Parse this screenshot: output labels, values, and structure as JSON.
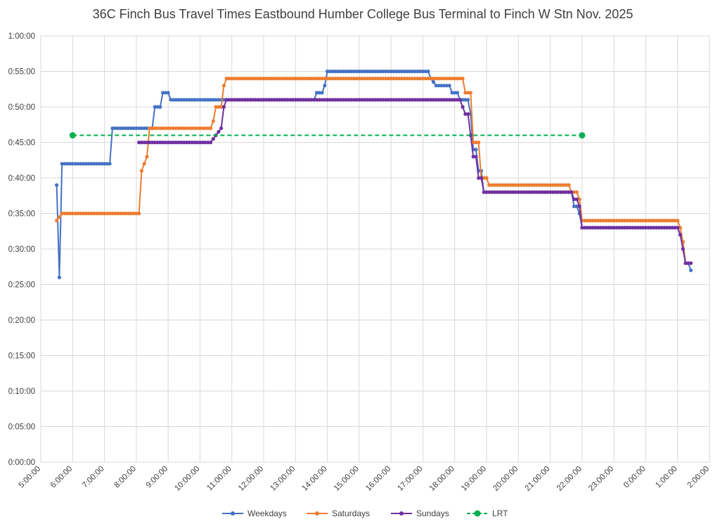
{
  "chart_data": {
    "type": "line",
    "title": "36C Finch Bus Travel Times Eastbound Humber College Bus Terminal to Finch W Stn Nov. 2025",
    "xlabel": "",
    "ylabel": "",
    "xlim": [
      "5:00:00",
      "2:00:00 (+1 day)"
    ],
    "ylim": [
      "0:00:00",
      "1:00:00"
    ],
    "grid": true,
    "legend": "bottom",
    "x_ticks": [
      "5:00:00",
      "6:00:00",
      "7:00:00",
      "8:00:00",
      "9:00:00",
      "10:00:00",
      "11:00:00",
      "12:00:00",
      "13:00:00",
      "14:00:00",
      "15:00:00",
      "16:00:00",
      "17:00:00",
      "18:00:00",
      "19:00:00",
      "20:00:00",
      "21:00:00",
      "22:00:00",
      "23:00:00",
      "0:00:00",
      "1:00:00",
      "2:00:00"
    ],
    "y_ticks": [
      "0:00:00",
      "0:05:00",
      "0:10:00",
      "0:15:00",
      "0:20:00",
      "0:25:00",
      "0:30:00",
      "0:35:00",
      "0:40:00",
      "0:45:00",
      "0:50:00",
      "0:55:00",
      "1:00:00"
    ],
    "series": [
      {
        "name": "Weekdays",
        "color": "#4472C4",
        "style": "solid",
        "points": [
          [
            "5:30",
            "0:39:00"
          ],
          [
            "5:35",
            "0:26:00"
          ],
          [
            "5:40",
            "0:42:00"
          ],
          [
            "7:10",
            "0:42:00"
          ],
          [
            "7:15",
            "0:47:00"
          ],
          [
            "8:30",
            "0:47:00"
          ],
          [
            "8:35",
            "0:50:00"
          ],
          [
            "8:45",
            "0:50:00"
          ],
          [
            "8:50",
            "0:52:00"
          ],
          [
            "9:00",
            "0:52:00"
          ],
          [
            "9:05",
            "0:51:00"
          ],
          [
            "13:35",
            "0:51:00"
          ],
          [
            "13:40",
            "0:52:00"
          ],
          [
            "13:50",
            "0:52:00"
          ],
          [
            "13:55",
            "0:53:00"
          ],
          [
            "14:00",
            "0:55:00"
          ],
          [
            "17:10",
            "0:55:00"
          ],
          [
            "17:15",
            "0:54:00"
          ],
          [
            "17:25",
            "0:53:00"
          ],
          [
            "17:50",
            "0:53:00"
          ],
          [
            "17:55",
            "0:52:00"
          ],
          [
            "18:05",
            "0:52:00"
          ],
          [
            "18:10",
            "0:51:00"
          ],
          [
            "18:25",
            "0:51:00"
          ],
          [
            "18:30",
            "0:49:00"
          ],
          [
            "18:35",
            "0:44:00"
          ],
          [
            "18:40",
            "0:44:00"
          ],
          [
            "18:45",
            "0:41:00"
          ],
          [
            "18:50",
            "0:41:00"
          ],
          [
            "18:55",
            "0:38:00"
          ],
          [
            "21:40",
            "0:38:00"
          ],
          [
            "21:45",
            "0:36:00"
          ],
          [
            "21:50",
            "0:36:00"
          ],
          [
            "21:55",
            "0:35:00"
          ],
          [
            "22:00",
            "0:33:00"
          ],
          [
            "25:00",
            "0:33:00"
          ],
          [
            "25:05",
            "0:32:00"
          ],
          [
            "25:10",
            "0:31:00"
          ],
          [
            "25:15",
            "0:28:00"
          ],
          [
            "25:20",
            "0:28:00"
          ],
          [
            "25:25",
            "0:27:00"
          ]
        ]
      },
      {
        "name": "Saturdays",
        "color": "#ED7D31",
        "style": "solid",
        "points": [
          [
            "5:30",
            "0:34:00"
          ],
          [
            "5:40",
            "0:35:00"
          ],
          [
            "8:05",
            "0:35:00"
          ],
          [
            "8:10",
            "0:41:00"
          ],
          [
            "8:20",
            "0:43:00"
          ],
          [
            "8:25",
            "0:47:00"
          ],
          [
            "10:20",
            "0:47:00"
          ],
          [
            "10:25",
            "0:48:00"
          ],
          [
            "10:30",
            "0:50:00"
          ],
          [
            "10:40",
            "0:50:00"
          ],
          [
            "10:45",
            "0:53:00"
          ],
          [
            "10:50",
            "0:54:00"
          ],
          [
            "18:15",
            "0:54:00"
          ],
          [
            "18:20",
            "0:52:00"
          ],
          [
            "18:30",
            "0:52:00"
          ],
          [
            "18:35",
            "0:45:00"
          ],
          [
            "18:45",
            "0:45:00"
          ],
          [
            "18:50",
            "0:40:00"
          ],
          [
            "19:00",
            "0:40:00"
          ],
          [
            "19:05",
            "0:39:00"
          ],
          [
            "21:35",
            "0:39:00"
          ],
          [
            "21:40",
            "0:38:00"
          ],
          [
            "21:50",
            "0:38:00"
          ],
          [
            "21:55",
            "0:37:00"
          ],
          [
            "22:00",
            "0:34:00"
          ],
          [
            "25:00",
            "0:34:00"
          ],
          [
            "25:05",
            "0:33:00"
          ],
          [
            "25:10",
            "0:31:00"
          ],
          [
            "25:15",
            "0:28:00"
          ],
          [
            "25:25",
            "0:28:00"
          ]
        ]
      },
      {
        "name": "Sundays",
        "color": "#7030A0",
        "style": "solid",
        "points": [
          [
            "8:05",
            "0:45:00"
          ],
          [
            "10:20",
            "0:45:00"
          ],
          [
            "10:30",
            "0:46:00"
          ],
          [
            "10:40",
            "0:47:00"
          ],
          [
            "10:45",
            "0:50:00"
          ],
          [
            "10:50",
            "0:51:00"
          ],
          [
            "18:05",
            "0:51:00"
          ],
          [
            "18:10",
            "0:51:00"
          ],
          [
            "18:20",
            "0:49:00"
          ],
          [
            "18:25",
            "0:49:00"
          ],
          [
            "18:30",
            "0:46:00"
          ],
          [
            "18:35",
            "0:43:00"
          ],
          [
            "18:40",
            "0:43:00"
          ],
          [
            "18:45",
            "0:40:00"
          ],
          [
            "18:50",
            "0:40:00"
          ],
          [
            "18:55",
            "0:38:00"
          ],
          [
            "21:40",
            "0:38:00"
          ],
          [
            "21:45",
            "0:37:00"
          ],
          [
            "21:50",
            "0:37:00"
          ],
          [
            "21:55",
            "0:36:00"
          ],
          [
            "22:00",
            "0:33:00"
          ],
          [
            "25:00",
            "0:33:00"
          ],
          [
            "25:05",
            "0:32:00"
          ],
          [
            "25:10",
            "0:30:00"
          ],
          [
            "25:15",
            "0:28:00"
          ],
          [
            "25:25",
            "0:28:00"
          ]
        ]
      },
      {
        "name": "LRT",
        "color": "#00B050",
        "style": "dashed",
        "points": [
          [
            "6:00",
            "0:46:00"
          ],
          [
            "22:00",
            "0:46:00"
          ]
        ]
      }
    ]
  }
}
